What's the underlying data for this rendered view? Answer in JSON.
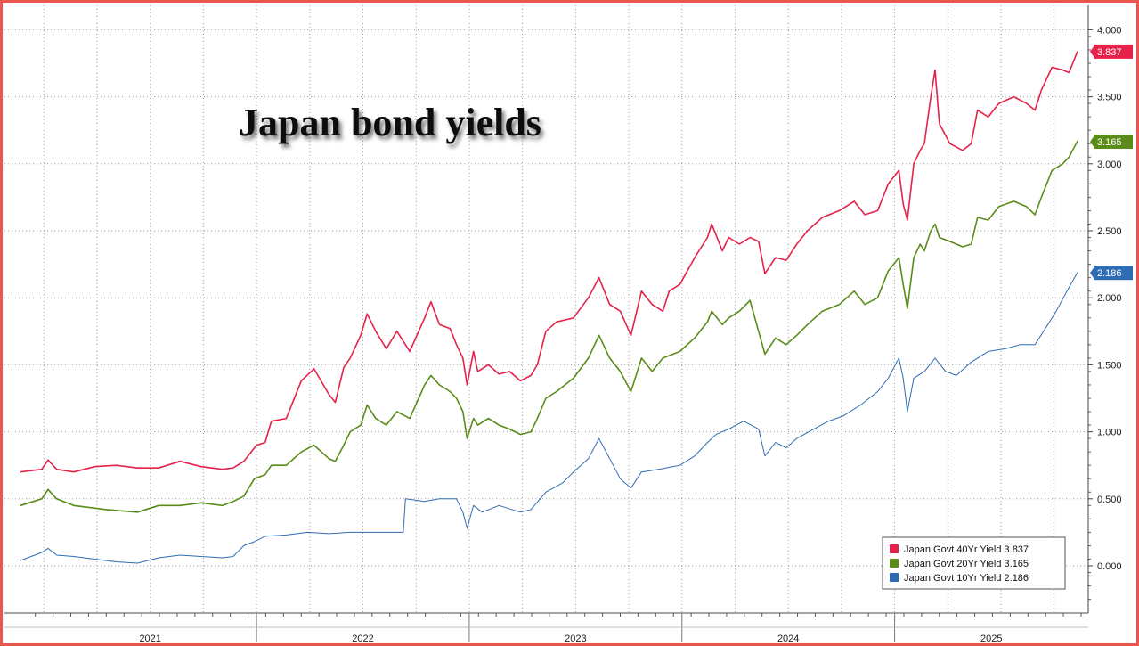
{
  "chart_data": {
    "type": "line",
    "title": "Japan bond yields",
    "x_labels": [
      "2021",
      "2022",
      "2023",
      "2024",
      "2025"
    ],
    "y_ticks": [
      "0.000",
      "0.500",
      "1.000",
      "1.500",
      "2.000",
      "2.500",
      "3.000",
      "3.500",
      "4.000"
    ],
    "ylim": [
      -0.35,
      4.15
    ],
    "xlim": [
      2020.95,
      2025.92
    ],
    "grid": true,
    "legend_position": "bottom-right",
    "series": [
      {
        "name": "Japan Govt 40Yr Yield",
        "last": "3.837",
        "color": "#e5224a",
        "points": [
          [
            2020.95,
            0.7
          ],
          [
            2021.05,
            0.72
          ],
          [
            2021.08,
            0.79
          ],
          [
            2021.12,
            0.72
          ],
          [
            2021.2,
            0.7
          ],
          [
            2021.3,
            0.74
          ],
          [
            2021.4,
            0.75
          ],
          [
            2021.5,
            0.73
          ],
          [
            2021.6,
            0.73
          ],
          [
            2021.7,
            0.78
          ],
          [
            2021.8,
            0.74
          ],
          [
            2021.9,
            0.72
          ],
          [
            2021.95,
            0.73
          ],
          [
            2022.0,
            0.78
          ],
          [
            2022.06,
            0.9
          ],
          [
            2022.1,
            0.92
          ],
          [
            2022.13,
            1.08
          ],
          [
            2022.2,
            1.1
          ],
          [
            2022.27,
            1.38
          ],
          [
            2022.33,
            1.47
          ],
          [
            2022.4,
            1.28
          ],
          [
            2022.43,
            1.22
          ],
          [
            2022.47,
            1.48
          ],
          [
            2022.5,
            1.55
          ],
          [
            2022.55,
            1.72
          ],
          [
            2022.58,
            1.88
          ],
          [
            2022.62,
            1.75
          ],
          [
            2022.67,
            1.62
          ],
          [
            2022.72,
            1.75
          ],
          [
            2022.78,
            1.6
          ],
          [
            2022.85,
            1.85
          ],
          [
            2022.88,
            1.97
          ],
          [
            2022.92,
            1.8
          ],
          [
            2022.97,
            1.77
          ],
          [
            2023.0,
            1.65
          ],
          [
            2023.03,
            1.55
          ],
          [
            2023.05,
            1.35
          ],
          [
            2023.08,
            1.6
          ],
          [
            2023.1,
            1.45
          ],
          [
            2023.15,
            1.5
          ],
          [
            2023.2,
            1.43
          ],
          [
            2023.25,
            1.45
          ],
          [
            2023.3,
            1.38
          ],
          [
            2023.35,
            1.42
          ],
          [
            2023.38,
            1.5
          ],
          [
            2023.42,
            1.75
          ],
          [
            2023.47,
            1.82
          ],
          [
            2023.55,
            1.85
          ],
          [
            2023.62,
            2.0
          ],
          [
            2023.67,
            2.15
          ],
          [
            2023.72,
            1.95
          ],
          [
            2023.77,
            1.9
          ],
          [
            2023.82,
            1.72
          ],
          [
            2023.87,
            2.05
          ],
          [
            2023.92,
            1.95
          ],
          [
            2023.97,
            1.9
          ],
          [
            2024.0,
            2.05
          ],
          [
            2024.05,
            2.1
          ],
          [
            2024.12,
            2.3
          ],
          [
            2024.18,
            2.45
          ],
          [
            2024.2,
            2.55
          ],
          [
            2024.25,
            2.35
          ],
          [
            2024.28,
            2.45
          ],
          [
            2024.33,
            2.4
          ],
          [
            2024.38,
            2.45
          ],
          [
            2024.42,
            2.42
          ],
          [
            2024.45,
            2.18
          ],
          [
            2024.5,
            2.3
          ],
          [
            2024.55,
            2.28
          ],
          [
            2024.6,
            2.4
          ],
          [
            2024.65,
            2.5
          ],
          [
            2024.72,
            2.6
          ],
          [
            2024.8,
            2.65
          ],
          [
            2024.87,
            2.72
          ],
          [
            2024.92,
            2.62
          ],
          [
            2024.98,
            2.65
          ],
          [
            2025.03,
            2.85
          ],
          [
            2025.08,
            2.95
          ],
          [
            2025.1,
            2.7
          ],
          [
            2025.12,
            2.58
          ],
          [
            2025.15,
            3.0
          ],
          [
            2025.18,
            3.1
          ],
          [
            2025.2,
            3.15
          ],
          [
            2025.23,
            3.5
          ],
          [
            2025.25,
            3.7
          ],
          [
            2025.27,
            3.3
          ],
          [
            2025.32,
            3.15
          ],
          [
            2025.38,
            3.1
          ],
          [
            2025.42,
            3.15
          ],
          [
            2025.45,
            3.4
          ],
          [
            2025.5,
            3.35
          ],
          [
            2025.55,
            3.45
          ],
          [
            2025.62,
            3.5
          ],
          [
            2025.68,
            3.45
          ],
          [
            2025.72,
            3.4
          ],
          [
            2025.75,
            3.55
          ],
          [
            2025.8,
            3.72
          ],
          [
            2025.85,
            3.7
          ],
          [
            2025.88,
            3.68
          ],
          [
            2025.92,
            3.84
          ]
        ]
      },
      {
        "name": "Japan Govt 20Yr Yield",
        "last": "3.165",
        "color": "#5b8c1a",
        "points": [
          [
            2020.95,
            0.45
          ],
          [
            2021.05,
            0.5
          ],
          [
            2021.08,
            0.57
          ],
          [
            2021.12,
            0.5
          ],
          [
            2021.2,
            0.45
          ],
          [
            2021.35,
            0.42
          ],
          [
            2021.5,
            0.4
          ],
          [
            2021.6,
            0.45
          ],
          [
            2021.7,
            0.45
          ],
          [
            2021.8,
            0.47
          ],
          [
            2021.9,
            0.45
          ],
          [
            2021.95,
            0.48
          ],
          [
            2022.0,
            0.52
          ],
          [
            2022.05,
            0.65
          ],
          [
            2022.1,
            0.68
          ],
          [
            2022.13,
            0.75
          ],
          [
            2022.2,
            0.75
          ],
          [
            2022.27,
            0.85
          ],
          [
            2022.33,
            0.9
          ],
          [
            2022.4,
            0.8
          ],
          [
            2022.43,
            0.78
          ],
          [
            2022.47,
            0.9
          ],
          [
            2022.5,
            1.0
          ],
          [
            2022.55,
            1.05
          ],
          [
            2022.58,
            1.2
          ],
          [
            2022.62,
            1.1
          ],
          [
            2022.67,
            1.05
          ],
          [
            2022.72,
            1.15
          ],
          [
            2022.78,
            1.1
          ],
          [
            2022.85,
            1.35
          ],
          [
            2022.88,
            1.42
          ],
          [
            2022.92,
            1.35
          ],
          [
            2022.97,
            1.3
          ],
          [
            2023.0,
            1.25
          ],
          [
            2023.03,
            1.15
          ],
          [
            2023.05,
            0.95
          ],
          [
            2023.08,
            1.1
          ],
          [
            2023.1,
            1.05
          ],
          [
            2023.15,
            1.1
          ],
          [
            2023.2,
            1.05
          ],
          [
            2023.25,
            1.02
          ],
          [
            2023.3,
            0.98
          ],
          [
            2023.35,
            1.0
          ],
          [
            2023.38,
            1.1
          ],
          [
            2023.42,
            1.25
          ],
          [
            2023.47,
            1.3
          ],
          [
            2023.55,
            1.4
          ],
          [
            2023.62,
            1.55
          ],
          [
            2023.67,
            1.72
          ],
          [
            2023.72,
            1.55
          ],
          [
            2023.77,
            1.45
          ],
          [
            2023.82,
            1.3
          ],
          [
            2023.87,
            1.55
          ],
          [
            2023.92,
            1.45
          ],
          [
            2023.97,
            1.55
          ],
          [
            2024.05,
            1.6
          ],
          [
            2024.12,
            1.7
          ],
          [
            2024.18,
            1.82
          ],
          [
            2024.2,
            1.9
          ],
          [
            2024.25,
            1.8
          ],
          [
            2024.28,
            1.85
          ],
          [
            2024.33,
            1.9
          ],
          [
            2024.38,
            1.98
          ],
          [
            2024.42,
            1.75
          ],
          [
            2024.45,
            1.58
          ],
          [
            2024.5,
            1.7
          ],
          [
            2024.55,
            1.65
          ],
          [
            2024.6,
            1.72
          ],
          [
            2024.65,
            1.8
          ],
          [
            2024.72,
            1.9
          ],
          [
            2024.8,
            1.95
          ],
          [
            2024.87,
            2.05
          ],
          [
            2024.92,
            1.95
          ],
          [
            2024.98,
            2.0
          ],
          [
            2025.03,
            2.2
          ],
          [
            2025.08,
            2.3
          ],
          [
            2025.1,
            2.1
          ],
          [
            2025.12,
            1.92
          ],
          [
            2025.15,
            2.3
          ],
          [
            2025.18,
            2.4
          ],
          [
            2025.2,
            2.35
          ],
          [
            2025.23,
            2.5
          ],
          [
            2025.25,
            2.55
          ],
          [
            2025.27,
            2.45
          ],
          [
            2025.32,
            2.42
          ],
          [
            2025.38,
            2.38
          ],
          [
            2025.42,
            2.4
          ],
          [
            2025.45,
            2.6
          ],
          [
            2025.5,
            2.58
          ],
          [
            2025.55,
            2.68
          ],
          [
            2025.62,
            2.72
          ],
          [
            2025.68,
            2.68
          ],
          [
            2025.72,
            2.62
          ],
          [
            2025.75,
            2.75
          ],
          [
            2025.8,
            2.95
          ],
          [
            2025.85,
            3.0
          ],
          [
            2025.88,
            3.05
          ],
          [
            2025.92,
            3.17
          ]
        ]
      },
      {
        "name": "Japan Govt 10Yr Yield",
        "last": "2.186",
        "color": "#2f6db3",
        "points": [
          [
            2020.95,
            0.04
          ],
          [
            2021.05,
            0.1
          ],
          [
            2021.08,
            0.13
          ],
          [
            2021.12,
            0.08
          ],
          [
            2021.2,
            0.07
          ],
          [
            2021.3,
            0.05
          ],
          [
            2021.4,
            0.03
          ],
          [
            2021.5,
            0.02
          ],
          [
            2021.6,
            0.06
          ],
          [
            2021.7,
            0.08
          ],
          [
            2021.8,
            0.07
          ],
          [
            2021.9,
            0.06
          ],
          [
            2021.95,
            0.07
          ],
          [
            2022.0,
            0.15
          ],
          [
            2022.05,
            0.18
          ],
          [
            2022.1,
            0.22
          ],
          [
            2022.2,
            0.23
          ],
          [
            2022.3,
            0.25
          ],
          [
            2022.4,
            0.24
          ],
          [
            2022.5,
            0.25
          ],
          [
            2022.6,
            0.25
          ],
          [
            2022.7,
            0.25
          ],
          [
            2022.75,
            0.25
          ],
          [
            2022.76,
            0.5
          ],
          [
            2022.85,
            0.48
          ],
          [
            2022.92,
            0.5
          ],
          [
            2023.0,
            0.5
          ],
          [
            2023.03,
            0.4
          ],
          [
            2023.05,
            0.28
          ],
          [
            2023.08,
            0.45
          ],
          [
            2023.12,
            0.4
          ],
          [
            2023.2,
            0.45
          ],
          [
            2023.3,
            0.4
          ],
          [
            2023.35,
            0.42
          ],
          [
            2023.42,
            0.55
          ],
          [
            2023.5,
            0.62
          ],
          [
            2023.55,
            0.7
          ],
          [
            2023.62,
            0.8
          ],
          [
            2023.67,
            0.95
          ],
          [
            2023.72,
            0.8
          ],
          [
            2023.77,
            0.65
          ],
          [
            2023.82,
            0.58
          ],
          [
            2023.87,
            0.7
          ],
          [
            2023.95,
            0.72
          ],
          [
            2024.05,
            0.75
          ],
          [
            2024.12,
            0.82
          ],
          [
            2024.18,
            0.92
          ],
          [
            2024.22,
            0.98
          ],
          [
            2024.28,
            1.02
          ],
          [
            2024.35,
            1.08
          ],
          [
            2024.42,
            1.02
          ],
          [
            2024.45,
            0.82
          ],
          [
            2024.5,
            0.92
          ],
          [
            2024.55,
            0.88
          ],
          [
            2024.6,
            0.95
          ],
          [
            2024.68,
            1.02
          ],
          [
            2024.75,
            1.08
          ],
          [
            2024.82,
            1.12
          ],
          [
            2024.9,
            1.2
          ],
          [
            2024.98,
            1.3
          ],
          [
            2025.03,
            1.4
          ],
          [
            2025.08,
            1.55
          ],
          [
            2025.1,
            1.4
          ],
          [
            2025.12,
            1.15
          ],
          [
            2025.15,
            1.4
          ],
          [
            2025.2,
            1.45
          ],
          [
            2025.25,
            1.55
          ],
          [
            2025.3,
            1.45
          ],
          [
            2025.35,
            1.42
          ],
          [
            2025.42,
            1.52
          ],
          [
            2025.5,
            1.6
          ],
          [
            2025.58,
            1.62
          ],
          [
            2025.65,
            1.65
          ],
          [
            2025.72,
            1.65
          ],
          [
            2025.78,
            1.8
          ],
          [
            2025.82,
            1.9
          ],
          [
            2025.87,
            2.05
          ],
          [
            2025.92,
            2.19
          ]
        ]
      }
    ]
  }
}
